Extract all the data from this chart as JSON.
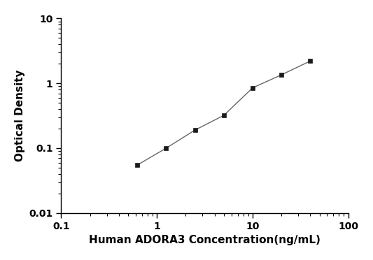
{
  "x": [
    0.625,
    1.25,
    2.5,
    5.0,
    10.0,
    20.0,
    40.0
  ],
  "y": [
    0.055,
    0.1,
    0.19,
    0.32,
    0.85,
    1.35,
    2.2
  ],
  "xlabel": "Human ADORA3 Concentration(ng/mL)",
  "ylabel": "Optical Density",
  "xlim": [
    0.1,
    100
  ],
  "ylim": [
    0.01,
    10
  ],
  "x_ticks": [
    0.1,
    1,
    10,
    100
  ],
  "x_tick_labels": [
    "0.1",
    "1",
    "10",
    "100"
  ],
  "y_ticks": [
    0.01,
    0.1,
    1,
    10
  ],
  "y_tick_labels": [
    "0.01",
    "0.1",
    "1",
    "10"
  ],
  "line_color": "#666666",
  "marker_color": "#1a1a1a",
  "marker": "s",
  "marker_size": 5,
  "line_width": 1.0,
  "background_color": "#ffffff",
  "label_fontsize": 11,
  "tick_fontsize": 10
}
